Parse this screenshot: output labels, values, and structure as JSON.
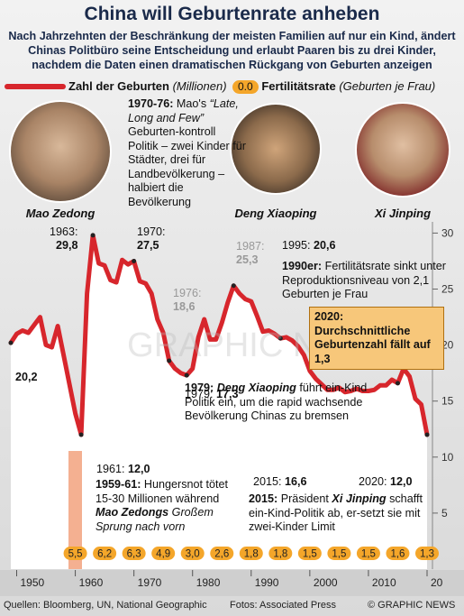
{
  "header": {
    "title": "China will Geburtenrate anheben",
    "subtitle": "Nach Jahrzehnten der Beschränkung der meisten Familien auf nur ein Kind, ändert Chinas Politbüro seine Entscheidung und erlaubt Paaren bis zu drei Kinder, nachdem die Daten einen dramatischen Rückgang von Geburten anzeigen"
  },
  "photos": [
    "Mao Zedong",
    "Deng Xiaoping",
    "Xi Jinping"
  ],
  "watermark": "GRAPHIC NEWS",
  "chart_data": {
    "type": "line",
    "x": [
      1949,
      1950,
      1951,
      1952,
      1953,
      1954,
      1955,
      1956,
      1957,
      1958,
      1959,
      1960,
      1961,
      1962,
      1963,
      1964,
      1965,
      1966,
      1967,
      1968,
      1969,
      1970,
      1971,
      1972,
      1973,
      1974,
      1975,
      1976,
      1977,
      1978,
      1979,
      1980,
      1981,
      1982,
      1983,
      1984,
      1985,
      1986,
      1987,
      1988,
      1989,
      1990,
      1991,
      1992,
      1993,
      1994,
      1995,
      1996,
      1997,
      1998,
      1999,
      2000,
      2001,
      2002,
      2003,
      2004,
      2005,
      2006,
      2007,
      2008,
      2009,
      2010,
      2011,
      2012,
      2013,
      2014,
      2015,
      2016,
      2017,
      2018,
      2019,
      2020
    ],
    "series": [
      {
        "name": "Zahl der Geburten",
        "unit": "(Millionen)",
        "color": "#d7262c",
        "values": [
          20.2,
          21.0,
          21.3,
          21.1,
          21.8,
          22.5,
          20.0,
          19.8,
          21.7,
          19.1,
          16.5,
          13.9,
          12.0,
          24.6,
          29.8,
          27.3,
          27.1,
          25.8,
          25.6,
          27.6,
          27.2,
          27.5,
          25.7,
          25.5,
          24.6,
          22.3,
          21.1,
          18.6,
          17.9,
          17.5,
          17.3,
          17.9,
          20.7,
          22.3,
          20.5,
          20.5,
          22.0,
          23.8,
          25.3,
          24.6,
          24.1,
          23.9,
          22.6,
          21.2,
          21.3,
          21.0,
          20.6,
          20.7,
          20.4,
          19.9,
          19.1,
          17.7,
          17.0,
          16.5,
          16.0,
          16.0,
          16.2,
          15.8,
          15.9,
          16.1,
          15.9,
          15.9,
          16.0,
          16.4,
          16.4,
          16.9,
          16.6,
          17.9,
          17.2,
          15.2,
          14.7,
          12.0
        ]
      }
    ],
    "fertility": {
      "name": "Fertilitätsrate",
      "unit": "(Geburten je Frau)",
      "legend_sample": "0.0",
      "color": "#f4a62a",
      "x": [
        1960,
        1965,
        1970,
        1975,
        1980,
        1985,
        1990,
        1995,
        2000,
        2005,
        2010,
        2015,
        2020
      ],
      "values": [
        5.5,
        6.2,
        6.3,
        4.9,
        3.0,
        2.6,
        1.8,
        1.8,
        1.5,
        1.5,
        1.5,
        1.6,
        1.3
      ],
      "value_labels": [
        "5,5",
        "6,2",
        "6,3",
        "4,9",
        "3,0",
        "2,6",
        "1,8",
        "1,8",
        "1,5",
        "1,5",
        "1,5",
        "1,6",
        "1,3"
      ]
    },
    "xlim": [
      1949,
      2020
    ],
    "xticks": [
      1950,
      1960,
      1970,
      1980,
      1990,
      2000,
      2010,
      {
        "value": 2020,
        "label": "20"
      }
    ],
    "ylim": [
      0,
      31
    ],
    "yticks": [
      5,
      10,
      15,
      20,
      25,
      30
    ],
    "annotations": [
      {
        "year": "1963:",
        "value": "29,8"
      },
      {
        "year": "1970:",
        "value": "27,5"
      },
      {
        "year": "1976:",
        "value": "18,6"
      },
      {
        "year": "1987:",
        "value": "25,3"
      },
      {
        "year": "1995:",
        "value": "20,6"
      },
      {
        "year": "1961:",
        "value": "12,0"
      },
      {
        "value": "20,2"
      },
      {
        "year": "1979:",
        "value": "17,3"
      },
      {
        "year": "2015:",
        "value": "16,6"
      },
      {
        "year": "2020:",
        "value": "12,0"
      }
    ],
    "notes": {
      "mao": [
        "1970-76:",
        " Mao's ",
        "“Late, Long and Few”",
        " Geburten-kontroll Politik – zwei Kinder für Städter, drei für Landbevölkerung – halbiert die Bevölkerung"
      ],
      "nineties": [
        "1990er:",
        " Fertilitätsrate sinkt unter Reproduktionsniveau von 2,1 Geburten je Frau"
      ],
      "y2020": "2020: Durchschnittliche Geburtenzahl fällt auf 1,3",
      "deng": [
        "1979:",
        " ",
        "Deng Xiaoping",
        " führt ein-Kind Politik ein, um die rapid wachsende Bevölkerung Chinas zu bremsen"
      ],
      "famine": [
        "1959-61:",
        " Hungersnot tötet 15-30 Millionen während ",
        "Mao Zedongs",
        " Großem Sprung nach vorn"
      ],
      "xi": [
        "2015:",
        " Präsident ",
        "Xi Jinping",
        " schafft ein-Kind-Politik ab, er-setzt sie mit zwei-Kinder Limit"
      ]
    }
  },
  "footer": {
    "sources": "Quellen: Bloomberg, UN, National Geographic",
    "photos": "Fotos: Associated Press",
    "copyright": "© GRAPHIC NEWS"
  }
}
